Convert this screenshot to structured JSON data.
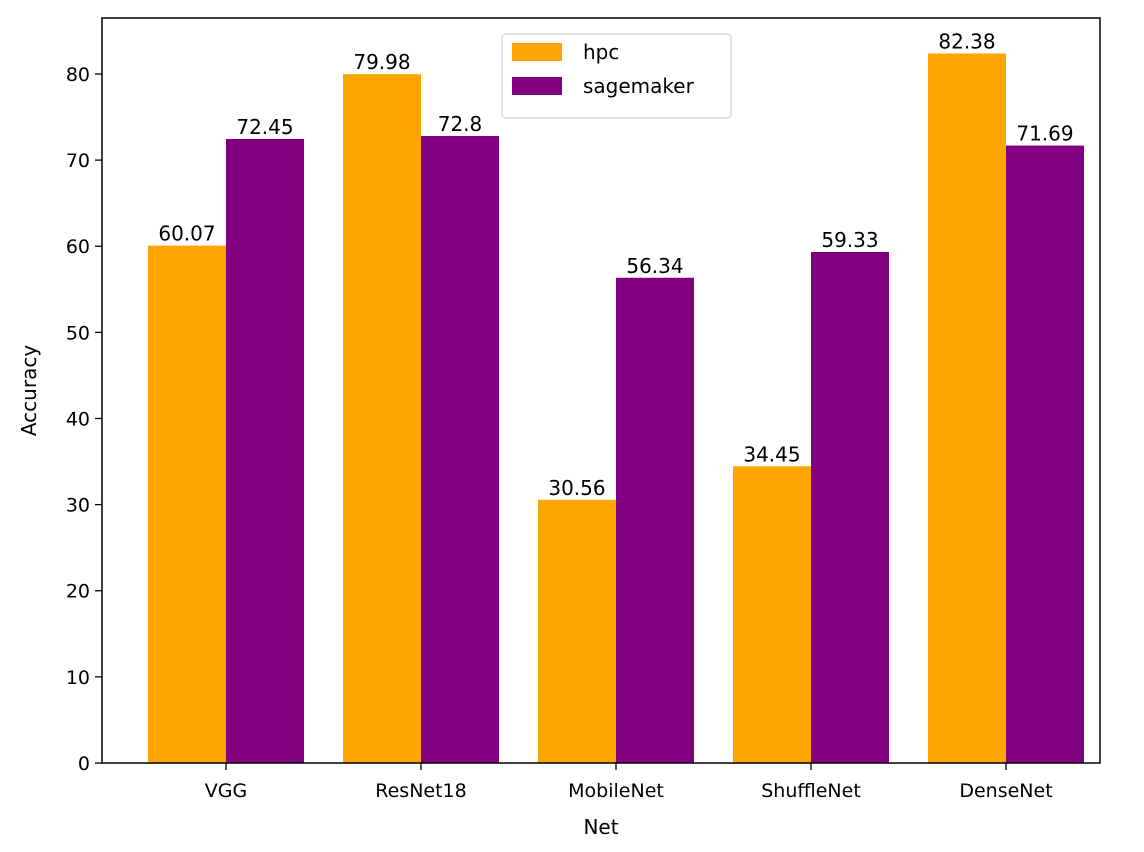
{
  "chart_data": {
    "type": "bar",
    "title": "",
    "xlabel": "Net",
    "ylabel": "Accuracy",
    "categories": [
      "VGG",
      "ResNet18",
      "MobileNet",
      "ShuffleNet",
      "DenseNet"
    ],
    "series": [
      {
        "name": "hpc",
        "color": "#ffa500",
        "values": [
          60.07,
          79.98,
          30.56,
          34.45,
          82.38
        ],
        "labels": [
          "60.07",
          "79.98",
          "30.56",
          "34.45",
          "82.38"
        ]
      },
      {
        "name": "sagemaker",
        "color": "#800080",
        "values": [
          72.45,
          72.8,
          56.34,
          59.33,
          71.69
        ],
        "labels": [
          "72.45",
          "72.8",
          "56.34",
          "59.33",
          "71.69"
        ]
      }
    ],
    "ylim": [
      0,
      86.5
    ],
    "yticks": [
      0,
      10,
      20,
      30,
      40,
      50,
      60,
      70,
      80
    ],
    "grid": false,
    "legend_position": "top-center"
  }
}
